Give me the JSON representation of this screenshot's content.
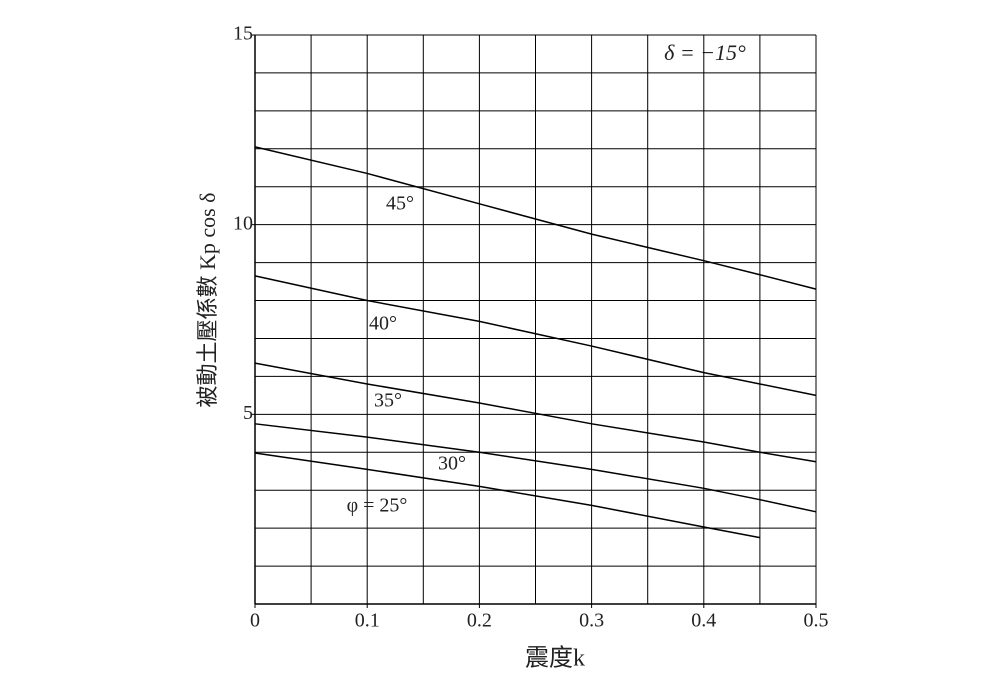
{
  "chart_data": {
    "type": "line",
    "ylabel": "被動土壓係數 Kp cos δ",
    "xlabel": "震度k",
    "annotation": "δ = −15°",
    "x": [
      0,
      0.1,
      0.2,
      0.3,
      0.4,
      0.45,
      0.5
    ],
    "series": [
      {
        "name": "45°",
        "color": "#000000",
        "values": [
          12.05,
          11.35,
          10.55,
          9.75,
          9.05,
          8.68,
          8.3
        ]
      },
      {
        "name": "40°",
        "color": "#000000",
        "values": [
          8.65,
          8.0,
          7.45,
          6.8,
          6.1,
          5.8,
          5.5
        ]
      },
      {
        "name": "35°",
        "color": "#000000",
        "values": [
          6.35,
          5.8,
          5.3,
          4.75,
          4.27,
          4.0,
          3.75
        ]
      },
      {
        "name": "30°",
        "color": "#000000",
        "values": [
          4.75,
          4.4,
          4.0,
          3.55,
          3.05,
          2.75,
          2.43
        ]
      },
      {
        "name": "φ = 25°",
        "color": "#000000",
        "values": [
          3.98,
          3.55,
          3.1,
          2.6,
          2.03,
          1.75,
          null
        ]
      }
    ],
    "xlim": [
      0,
      0.5
    ],
    "ylim": [
      0,
      15
    ],
    "xticks": [
      0,
      0.1,
      0.2,
      0.3,
      0.4,
      0.5
    ],
    "yticks": [
      5,
      10,
      15
    ],
    "xgrid": [
      0.05,
      0.1,
      0.15,
      0.2,
      0.25,
      0.3,
      0.35,
      0.4,
      0.45,
      0.5
    ],
    "ygrid": [
      1,
      2,
      3,
      4,
      5,
      6,
      7,
      8,
      9,
      10,
      11,
      12,
      13,
      14,
      15
    ],
    "grid": true
  }
}
